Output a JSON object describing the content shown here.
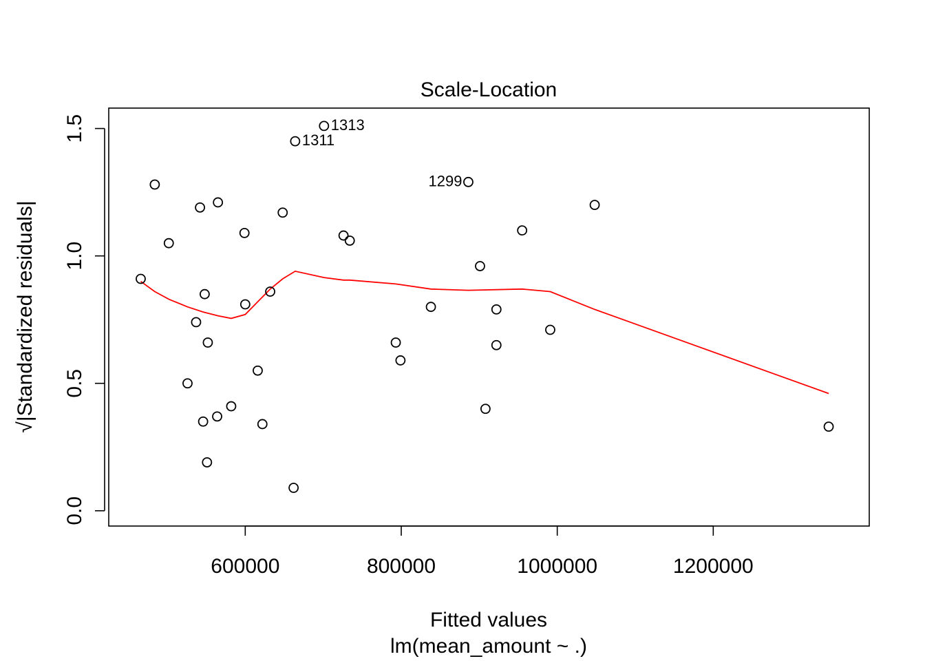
{
  "chart_data": {
    "type": "scatter",
    "title": "Scale-Location",
    "xlabel": "Fitted values",
    "xlabel_sub": "lm(mean_amount ~ .)",
    "ylabel": "√|Standardized residuals|",
    "xlim": [
      425000,
      1400000
    ],
    "ylim": [
      -0.06,
      1.58
    ],
    "x_ticks": [
      600000,
      800000,
      1000000,
      1200000
    ],
    "x_tick_labels": [
      "600000",
      "800000",
      "1000000",
      "1200000"
    ],
    "y_ticks": [
      0.0,
      0.5,
      1.0,
      1.5
    ],
    "y_tick_labels": [
      "0.0",
      "0.5",
      "1.0",
      "1.5"
    ],
    "points": [
      {
        "x": 701000,
        "y": 1.51,
        "label": "1313"
      },
      {
        "x": 664000,
        "y": 1.45,
        "label": "1311"
      },
      {
        "x": 886000,
        "y": 1.29,
        "label": "1299"
      },
      {
        "x": 484000,
        "y": 1.28
      },
      {
        "x": 1048000,
        "y": 1.2
      },
      {
        "x": 565000,
        "y": 1.21
      },
      {
        "x": 542000,
        "y": 1.19
      },
      {
        "x": 648000,
        "y": 1.17
      },
      {
        "x": 955000,
        "y": 1.1
      },
      {
        "x": 599000,
        "y": 1.09
      },
      {
        "x": 726000,
        "y": 1.08
      },
      {
        "x": 734000,
        "y": 1.06
      },
      {
        "x": 502000,
        "y": 1.05
      },
      {
        "x": 901000,
        "y": 0.96
      },
      {
        "x": 466000,
        "y": 0.91
      },
      {
        "x": 632000,
        "y": 0.86
      },
      {
        "x": 548000,
        "y": 0.85
      },
      {
        "x": 600000,
        "y": 0.81
      },
      {
        "x": 838000,
        "y": 0.8
      },
      {
        "x": 922000,
        "y": 0.79
      },
      {
        "x": 537000,
        "y": 0.74
      },
      {
        "x": 991000,
        "y": 0.71
      },
      {
        "x": 552000,
        "y": 0.66
      },
      {
        "x": 793000,
        "y": 0.66
      },
      {
        "x": 922000,
        "y": 0.65
      },
      {
        "x": 799000,
        "y": 0.59
      },
      {
        "x": 616000,
        "y": 0.55
      },
      {
        "x": 526000,
        "y": 0.5
      },
      {
        "x": 582000,
        "y": 0.41
      },
      {
        "x": 908000,
        "y": 0.4
      },
      {
        "x": 564000,
        "y": 0.37
      },
      {
        "x": 546000,
        "y": 0.35
      },
      {
        "x": 622000,
        "y": 0.34
      },
      {
        "x": 1348000,
        "y": 0.33
      },
      {
        "x": 551000,
        "y": 0.19
      },
      {
        "x": 662000,
        "y": 0.09
      }
    ],
    "smooth_line": {
      "color": "#ff0000",
      "x": [
        466000,
        484000,
        502000,
        526000,
        546000,
        565000,
        582000,
        600000,
        616000,
        632000,
        648000,
        664000,
        701000,
        726000,
        734000,
        793000,
        838000,
        886000,
        955000,
        991000,
        1048000,
        1348000
      ],
      "y": [
        0.9,
        0.86,
        0.83,
        0.8,
        0.78,
        0.765,
        0.755,
        0.77,
        0.82,
        0.87,
        0.91,
        0.94,
        0.915,
        0.905,
        0.905,
        0.89,
        0.87,
        0.865,
        0.87,
        0.86,
        0.79,
        0.46
      ]
    },
    "point_color": "#000000",
    "grid": false,
    "legend": "none"
  }
}
